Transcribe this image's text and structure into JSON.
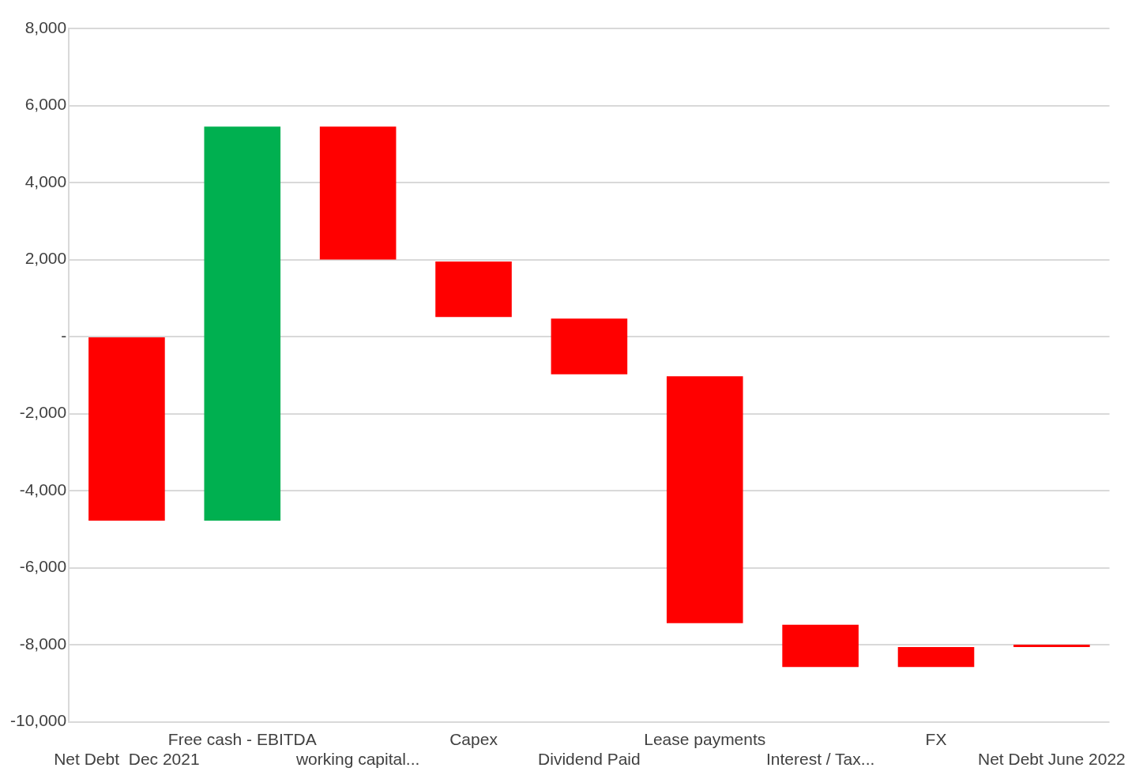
{
  "chart_data": {
    "type": "bar",
    "categories": [
      "Net Debt  Dec 2021",
      "Free cash - EBITDA",
      "working capital...",
      "Capex",
      "Dividend Paid",
      "Lease payments",
      "Interest / Tax...",
      "FX",
      "Net Debt June 2022"
    ],
    "base": [
      0,
      -4780,
      5450,
      1950,
      470,
      -1030,
      -7480,
      -8580,
      -8000
    ],
    "values": [
      -4780,
      10230,
      -3450,
      -1440,
      -1450,
      -6410,
      -1100,
      520,
      -60
    ],
    "colors": [
      "#ff0000",
      "#00b050",
      "#ff0000",
      "#ff0000",
      "#ff0000",
      "#ff0000",
      "#ff0000",
      "#ff0000",
      "#ff0000"
    ],
    "ylim": [
      -10000,
      8000
    ],
    "yticks": [
      {
        "value": -10000,
        "label": "-10,000"
      },
      {
        "value": -8000,
        "label": "-8,000"
      },
      {
        "value": -6000,
        "label": "-6,000"
      },
      {
        "value": -4000,
        "label": "-4,000"
      },
      {
        "value": -2000,
        "label": "-2,000"
      },
      {
        "value": 0,
        "label": "-"
      },
      {
        "value": 2000,
        "label": "2,000"
      },
      {
        "value": 4000,
        "label": "4,000"
      },
      {
        "value": 6000,
        "label": "6,000"
      },
      {
        "value": 8000,
        "label": "8,000"
      }
    ],
    "grid": "y",
    "legend": false
  }
}
